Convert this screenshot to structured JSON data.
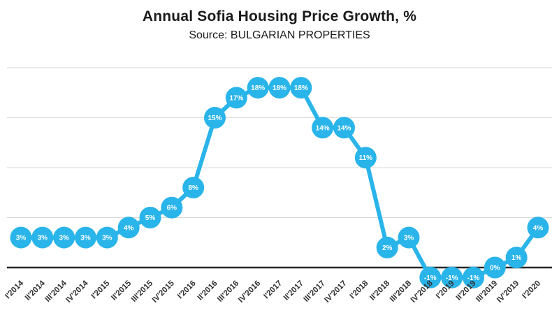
{
  "header": {
    "title": "Annual Sofia Housing Price Growth, %",
    "subtitle": "Source: BULGARIAN PROPERTIES"
  },
  "chart_data": {
    "type": "line",
    "title": "Annual Sofia Housing Price Growth, %",
    "subtitle": "Source: BULGARIAN PROPERTIES",
    "categories": [
      "I'2014",
      "II'2014",
      "III'2014",
      "IV'2014",
      "I'2015",
      "II'2015",
      "III'2015",
      "IV'2015",
      "I'2016",
      "II'2016",
      "III'2016",
      "IV'2016",
      "I'2017",
      "II'2017",
      "III'2017",
      "IV'2017",
      "I'2018",
      "II'2018",
      "III'2018",
      "IV'2018",
      "I'2019",
      "II'2019",
      "III'2019",
      "IV'2019",
      "I'2020"
    ],
    "values": [
      3,
      3,
      3,
      3,
      3,
      4,
      5,
      6,
      8,
      15,
      17,
      18,
      18,
      18,
      14,
      14,
      11,
      2,
      3,
      -1,
      -1,
      -1,
      0,
      1,
      4
    ],
    "unit": "%",
    "line_color": "#29b4ea",
    "marker_text_color": "#ffffff",
    "axis_line_color": "#262626",
    "gridline_color": "#d9d9d9",
    "tick_label_color": "#333333",
    "gridlines": [
      0,
      5,
      10,
      15,
      20
    ],
    "ylim": [
      -4,
      21
    ],
    "grid": true,
    "legend": false,
    "xlabel": "",
    "ylabel": ""
  }
}
